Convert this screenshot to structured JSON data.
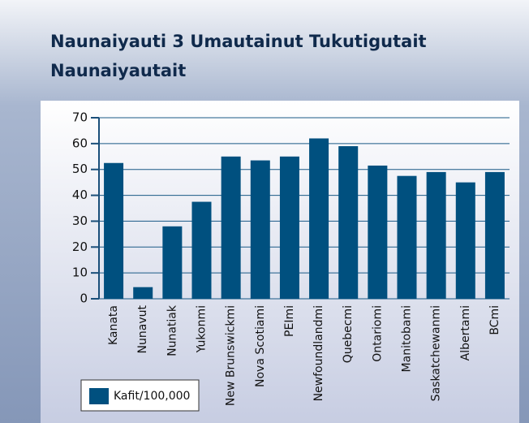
{
  "chart_data": {
    "type": "bar",
    "title": [
      "Naunaiyauti 3  Umautainut Tukutigutait",
      "Naunaiyautait"
    ],
    "categories": [
      "Kanata",
      "Nunavut",
      "Nunatiak",
      "Yukonmi",
      "New Brunswickmi",
      "Nova Scotiami",
      "PEImi",
      "Newfoundlandmi",
      "Quebecmi",
      "Ontariomi",
      "Manitobami",
      "Saskatchewanmi",
      "Albertami",
      "BCmi"
    ],
    "series": [
      {
        "name": "Kafit/100,000",
        "color": "#00507f",
        "values": [
          52.5,
          4.5,
          28,
          37.5,
          55,
          53.5,
          55,
          62,
          59,
          51.5,
          47.5,
          49,
          45,
          49
        ]
      }
    ],
    "ylim": [
      0,
      70
    ],
    "yticks": [
      0,
      10,
      20,
      30,
      40,
      50,
      60,
      70
    ],
    "grid": true,
    "legend": "bottom-left"
  }
}
